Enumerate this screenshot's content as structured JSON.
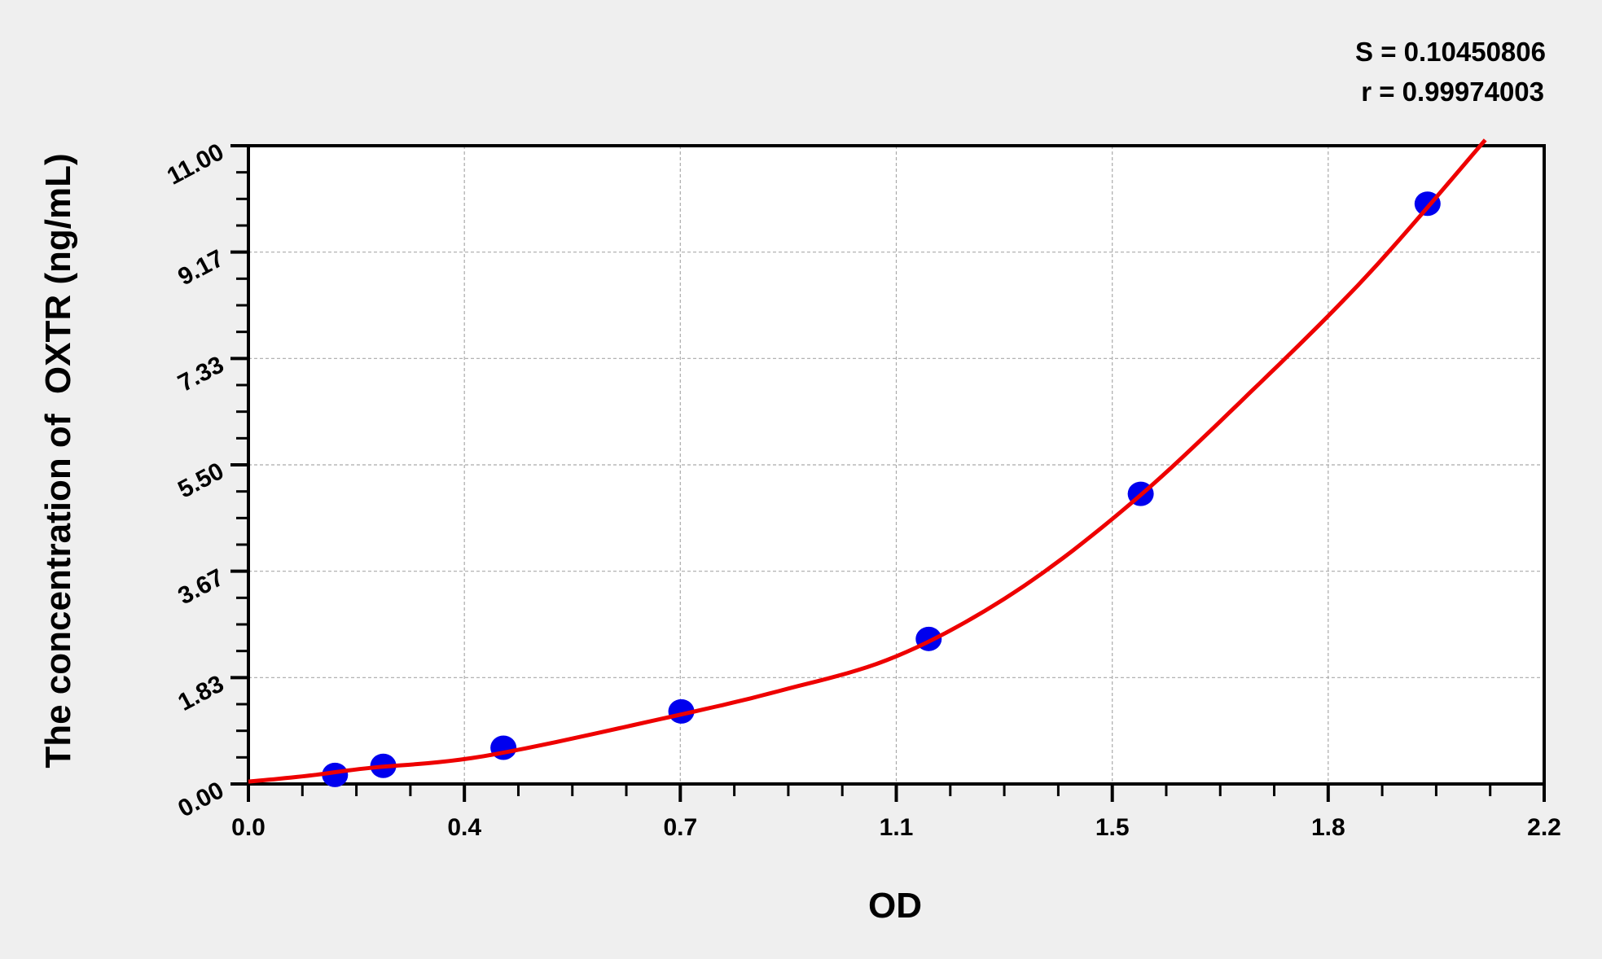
{
  "chart_data": {
    "type": "scatter",
    "title": "",
    "xlabel": "OD",
    "ylabel": "The concentration of  OXTR (ng/mL)",
    "xlim": [
      0,
      2.2
    ],
    "ylim": [
      0,
      11
    ],
    "x_tick_values": [
      0,
      0.3667,
      0.7333,
      1.1,
      1.4667,
      1.8333,
      2.2
    ],
    "x_tick_labels": [
      "0.0",
      "0.4",
      "0.7",
      "1.1",
      "1.5",
      "1.8",
      "2.2"
    ],
    "y_tick_values": [
      0,
      1.8333,
      3.6667,
      5.5,
      7.3333,
      9.1667,
      11
    ],
    "y_tick_labels": [
      "0.00",
      "1.83",
      "3.67",
      "5.50",
      "7.33",
      "9.17",
      "11.00"
    ],
    "grid": true,
    "annotations": [
      "S = 0.10450806",
      "r = 0.99974003"
    ],
    "points": {
      "x": [
        0.147,
        0.229,
        0.433,
        0.735,
        1.155,
        1.515,
        2.002
      ],
      "y": [
        0.156,
        0.312,
        0.625,
        1.25,
        2.5,
        5.0,
        10.0
      ],
      "color": "#0000ee"
    },
    "fit_curve": {
      "x": [
        0.0,
        0.1,
        0.2,
        0.4,
        0.7,
        0.9,
        1.1,
        1.3,
        1.5,
        1.7,
        1.9,
        2.1
      ],
      "y": [
        0.04,
        0.14,
        0.27,
        0.48,
        1.12,
        1.6,
        2.2,
        3.3,
        4.85,
        6.74,
        8.77,
        11.1
      ],
      "color": "#ee0000"
    }
  }
}
